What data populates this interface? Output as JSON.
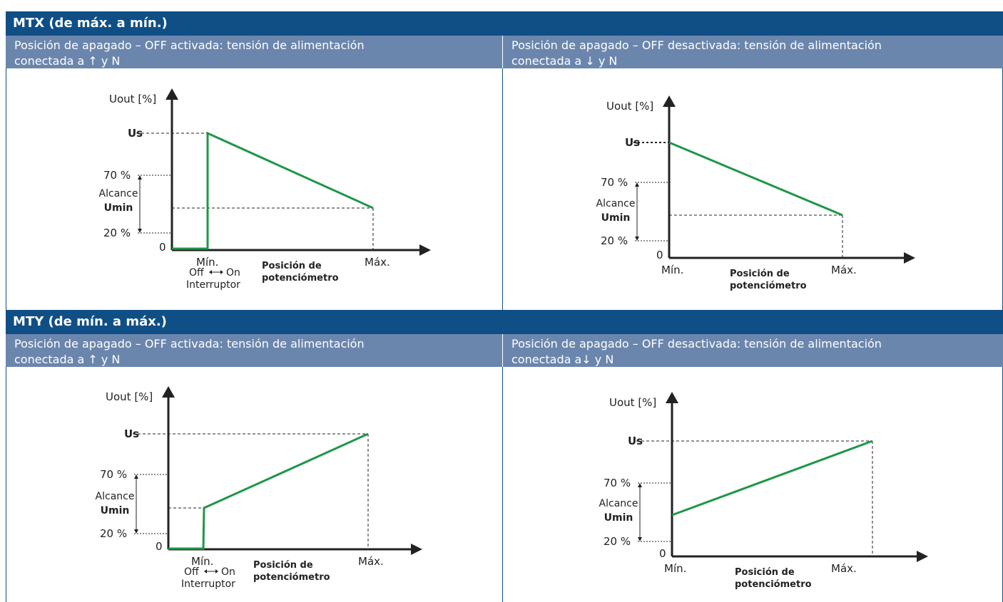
{
  "sections": [
    {
      "title": "MTX (de máx. a mín.)",
      "captions": [
        {
          "line1": "Posición de apagado – OFF activada: tensión de alimentación",
          "line2": "conectada a ↑ y N"
        },
        {
          "line1": "Posición de apagado – OFF desactivada: tensión de alimentación",
          "line2": "conectada a ↓ y N"
        }
      ]
    },
    {
      "title": "MTY (de mín. a máx.)",
      "captions": [
        {
          "line1": "Posición de apagado – OFF activada: tensión de alimentación",
          "line2": "conectada a ↑ y N"
        },
        {
          "line1": "Posición de apagado – OFF desactivada: tensión de alimentación",
          "line2": "conectada a↓ y N"
        }
      ]
    }
  ],
  "diagram_labels": {
    "y_axis": "Uout [%]",
    "us": "Us",
    "pct70": "70 %",
    "pct20": "20 %",
    "alcance": "Alcance",
    "umin": "Umin",
    "zero": "0",
    "min": "Mín.",
    "max": "Máx.",
    "pos1": "Posición de",
    "pos2": "potenciómetro",
    "off": "Off",
    "on": "On",
    "interruptor": "Interruptor"
  },
  "colors": {
    "header": "#0f4f86",
    "caption": "#6b86ad",
    "curve": "#1f9648",
    "axis": "#222222"
  }
}
